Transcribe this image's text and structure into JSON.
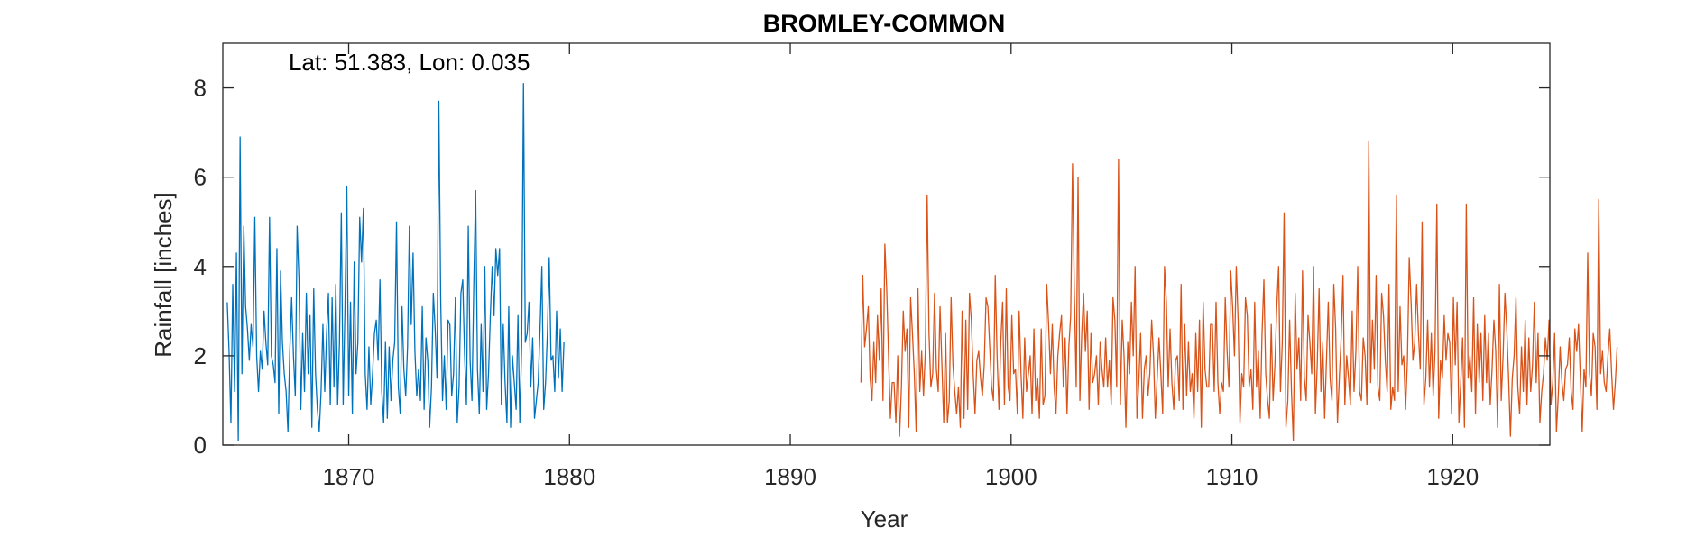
{
  "chart_data": {
    "type": "line",
    "title": "BROMLEY-COMMON",
    "annotation": "Lat: 51.383, Lon: 0.035",
    "xlabel": "Year",
    "ylabel": "Rainfall [inches]",
    "xlim": [
      1864.3,
      1924.4
    ],
    "ylim": [
      0,
      9
    ],
    "xticks": [
      1870,
      1880,
      1890,
      1900,
      1910,
      1920
    ],
    "xtick_labels": [
      "1870",
      "1880",
      "1890",
      "1900",
      "1910",
      "1920"
    ],
    "yticks": [
      0,
      2,
      4,
      6,
      8
    ],
    "ytick_labels": [
      "0",
      "2",
      "4",
      "6",
      "8"
    ],
    "grid": false,
    "series": [
      {
        "color": "#0072BD",
        "x_start": 1864.5,
        "x_step": 0.08333,
        "values": [
          3.2,
          2.1,
          0.5,
          3.6,
          1.2,
          4.3,
          0.1,
          6.9,
          1.6,
          4.9,
          3.1,
          2.6,
          1.9,
          2.7,
          2.2,
          5.1,
          2.0,
          1.2,
          2.1,
          1.7,
          3.0,
          2.3,
          1.8,
          5.1,
          2.0,
          1.8,
          1.4,
          4.4,
          0.7,
          3.9,
          2.3,
          1.6,
          1.2,
          0.3,
          2.1,
          3.3,
          2.0,
          1.1,
          4.9,
          3.7,
          0.8,
          2.5,
          1.2,
          3.4,
          1.6,
          2.9,
          0.4,
          3.5,
          1.6,
          0.8,
          0.3,
          1.2,
          2.7,
          1.2,
          2.5,
          3.4,
          0.9,
          3.3,
          1.3,
          3.6,
          0.9,
          2.3,
          5.2,
          0.9,
          3.1,
          5.8,
          1.1,
          3.2,
          0.7,
          4.1,
          1.6,
          2.3,
          5.1,
          4.1,
          5.3,
          1.6,
          0.8,
          2.2,
          0.9,
          1.6,
          2.5,
          2.8,
          1.9,
          3.7,
          1.2,
          0.5,
          2.3,
          0.6,
          2.2,
          1.0,
          1.9,
          2.3,
          5.0,
          1.3,
          0.7,
          3.1,
          1.7,
          1.1,
          2.2,
          4.9,
          2.7,
          4.3,
          2.1,
          1.1,
          1.7,
          1.0,
          3.1,
          0.8,
          2.4,
          1.9,
          0.4,
          1.3,
          3.4,
          2.6,
          1.5,
          7.7,
          3.3,
          1.0,
          2.0,
          0.8,
          2.8,
          2.7,
          1.1,
          1.6,
          3.3,
          0.5,
          1.3,
          3.4,
          3.7,
          2.0,
          0.9,
          4.9,
          1.9,
          1.0,
          3.6,
          5.7,
          1.7,
          0.7,
          2.7,
          1.2,
          4.0,
          0.8,
          1.6,
          2.9,
          4.0,
          2.9,
          4.4,
          3.8,
          4.4,
          0.9,
          2.7,
          1.4,
          0.5,
          3.1,
          0.4,
          2.0,
          1.4,
          0.8,
          2.9,
          0.5,
          2.2,
          8.1,
          2.3,
          2.5,
          3.2,
          1.3,
          2.4,
          0.6,
          1.0,
          1.4,
          2.6,
          4.0,
          0.8,
          1.4,
          2.5,
          4.2,
          1.9,
          2.0,
          1.2,
          3.0,
          1.5,
          2.6,
          1.2,
          2.3
        ]
      },
      {
        "color": "#D95319",
        "x_start": 1893.2,
        "x_step": 0.08333,
        "values": [
          1.4,
          3.8,
          2.2,
          2.6,
          3.1,
          1.5,
          1.0,
          2.3,
          1.4,
          2.9,
          1.9,
          3.5,
          1.0,
          4.5,
          3.5,
          2.0,
          0.6,
          1.4,
          1.4,
          0.5,
          2.0,
          0.2,
          1.3,
          3.0,
          2.1,
          2.6,
          0.4,
          3.3,
          2.5,
          1.6,
          0.3,
          3.5,
          1.2,
          2.1,
          1.1,
          2.1,
          5.6,
          2.5,
          1.3,
          1.6,
          3.4,
          1.7,
          1.2,
          3.1,
          1.8,
          0.5,
          2.5,
          0.5,
          1.0,
          3.3,
          1.8,
          1.2,
          0.7,
          1.3,
          0.4,
          3.0,
          0.6,
          2.8,
          0.8,
          3.4,
          2.8,
          1.6,
          0.7,
          1.9,
          2.1,
          1.5,
          1.1,
          1.8,
          3.3,
          3.1,
          2.2,
          1.3,
          1.0,
          3.8,
          2.0,
          0.8,
          2.3,
          3.2,
          0.9,
          3.5,
          1.3,
          1.0,
          2.9,
          1.6,
          1.7,
          0.7,
          3.0,
          1.6,
          0.6,
          2.4,
          1.2,
          1.6,
          2.0,
          0.7,
          2.6,
          1.0,
          1.5,
          0.6,
          2.6,
          0.9,
          1.1,
          3.6,
          2.7,
          1.6,
          2.7,
          1.3,
          0.7,
          2.0,
          2.5,
          2.9,
          1.3,
          2.4,
          0.7,
          2.2,
          2.9,
          6.3,
          3.4,
          1.3,
          6.0,
          1.0,
          2.5,
          3.4,
          2.1,
          3.0,
          0.8,
          2.5,
          1.4,
          1.6,
          2.0,
          0.9,
          2.3,
          1.7,
          1.3,
          2.4,
          1.3,
          1.9,
          0.9,
          3.3,
          2.8,
          1.3,
          6.4,
          0.9,
          2.8,
          2.0,
          0.4,
          2.3,
          1.6,
          3.2,
          2.0,
          4.0,
          0.6,
          1.4,
          2.5,
          0.6,
          1.7,
          2.0,
          1.1,
          1.6,
          2.8,
          2.0,
          0.6,
          1.5,
          2.4,
          1.6,
          0.7,
          4.0,
          3.2,
          1.3,
          2.6,
          1.4,
          0.8,
          1.9,
          2.0,
          1.0,
          3.6,
          0.8,
          2.7,
          1.1,
          2.3,
          1.2,
          1.6,
          0.6,
          2.5,
          1.2,
          2.8,
          0.4,
          3.2,
          1.7,
          1.3,
          1.3,
          2.7,
          2.7,
          1.2,
          3.2,
          1.4,
          0.7,
          1.4,
          1.2,
          3.3,
          2.1,
          1.3,
          3.9,
          3.1,
          2.0,
          4.0,
          2.8,
          0.5,
          1.6,
          1.3,
          3.3,
          2.9,
          1.3,
          1.7,
          0.8,
          3.2,
          1.3,
          2.1,
          0.6,
          2.5,
          3.7,
          1.6,
          1.0,
          0.6,
          2.7,
          1.0,
          1.8,
          3.1,
          4.0,
          1.2,
          2.3,
          5.2,
          0.4,
          1.0,
          2.8,
          1.2,
          0.1,
          3.4,
          1.7,
          2.4,
          1.0,
          3.9,
          1.5,
          1.0,
          2.9,
          2.3,
          1.6,
          4.0,
          0.7,
          1.8,
          3.5,
          1.2,
          2.3,
          0.6,
          1.9,
          3.2,
          1.5,
          1.0,
          3.6,
          2.6,
          0.5,
          1.5,
          2.4,
          3.8,
          0.9,
          2.0,
          1.5,
          0.9,
          3.0,
          1.2,
          2.1,
          4.0,
          1.2,
          1.0,
          2.4,
          2.0,
          0.9,
          6.8,
          1.4,
          2.8,
          1.7,
          3.8,
          1.3,
          1.0,
          3.4,
          2.9,
          1.9,
          1.2,
          3.6,
          0.8,
          1.3,
          1.0,
          5.6,
          1.2,
          3.1,
          1.8,
          2.0,
          0.8,
          1.9,
          4.2,
          3.2,
          1.9,
          2.3,
          3.6,
          2.5,
          1.7,
          5.0,
          0.9,
          1.5,
          2.8,
          1.3,
          2.5,
          1.1,
          2.1,
          5.4,
          0.6,
          1.9,
          1.5,
          2.9,
          1.9,
          2.5,
          2.3,
          0.7,
          3.3,
          1.8,
          3.2,
          0.5,
          1.4,
          2.4,
          0.4,
          5.4,
          1.5,
          2.0,
          1.2,
          3.3,
          0.7,
          2.7,
          1.4,
          2.5,
          1.0,
          2.9,
          1.4,
          2.5,
          0.9,
          1.7,
          2.8,
          2.1,
          0.4,
          3.6,
          1.0,
          2.0,
          3.4,
          2.6,
          1.5,
          0.2,
          1.5,
          2.0,
          3.3,
          1.3,
          0.7,
          2.2,
          1.2,
          2.8,
          0.9,
          2.4,
          1.2,
          1.8,
          3.2,
          1.4,
          2.5,
          0.5,
          1.2,
          1.6,
          2.4,
          1.9,
          2.8,
          0.9,
          1.4,
          2.5,
          0.3,
          1.1,
          2.2,
          1.4,
          1.0,
          1.7,
          1.8,
          2.4,
          1.2,
          0.8,
          2.6,
          2.1,
          2.7,
          1.5,
          0.3,
          1.7,
          1.3,
          4.3,
          1.6,
          1.1,
          2.5,
          2.2,
          0.8,
          5.5,
          1.6,
          2.1,
          1.4,
          1.2,
          2.0,
          2.6,
          1.6,
          0.8,
          1.4,
          2.2
        ]
      }
    ]
  }
}
